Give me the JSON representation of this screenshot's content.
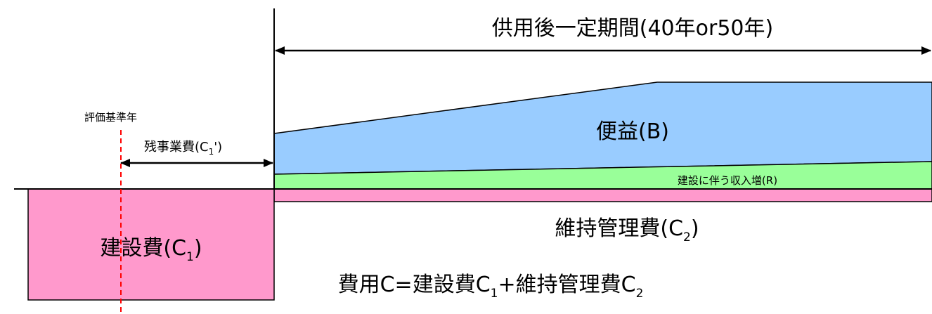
{
  "title_period": "供用後一定期間(40年or50年)",
  "benefit_label": "便益(B)",
  "revenue_label": "建設に伴う収入増(R)",
  "maintenance_label": {
    "main": "維持管理費(C",
    "sub": "2",
    "close": ")"
  },
  "construction_label": {
    "main": "建設費(C",
    "sub": "1",
    "close": ")"
  },
  "base_year_label": "評価基準年",
  "remaining_cost_label": {
    "main": "残事業費(C",
    "sub": "1",
    "close": "')"
  },
  "formula": {
    "part1": "費用C=建設費C",
    "sub1": "1",
    "part2": "+維持管理費C",
    "sub2": "2"
  },
  "colors": {
    "benefit_fill": "#99CCFF",
    "revenue_fill": "#99FF99",
    "cost_fill": "#FF99CC",
    "dashed_line": "#FF0000",
    "stroke": "#000000"
  }
}
